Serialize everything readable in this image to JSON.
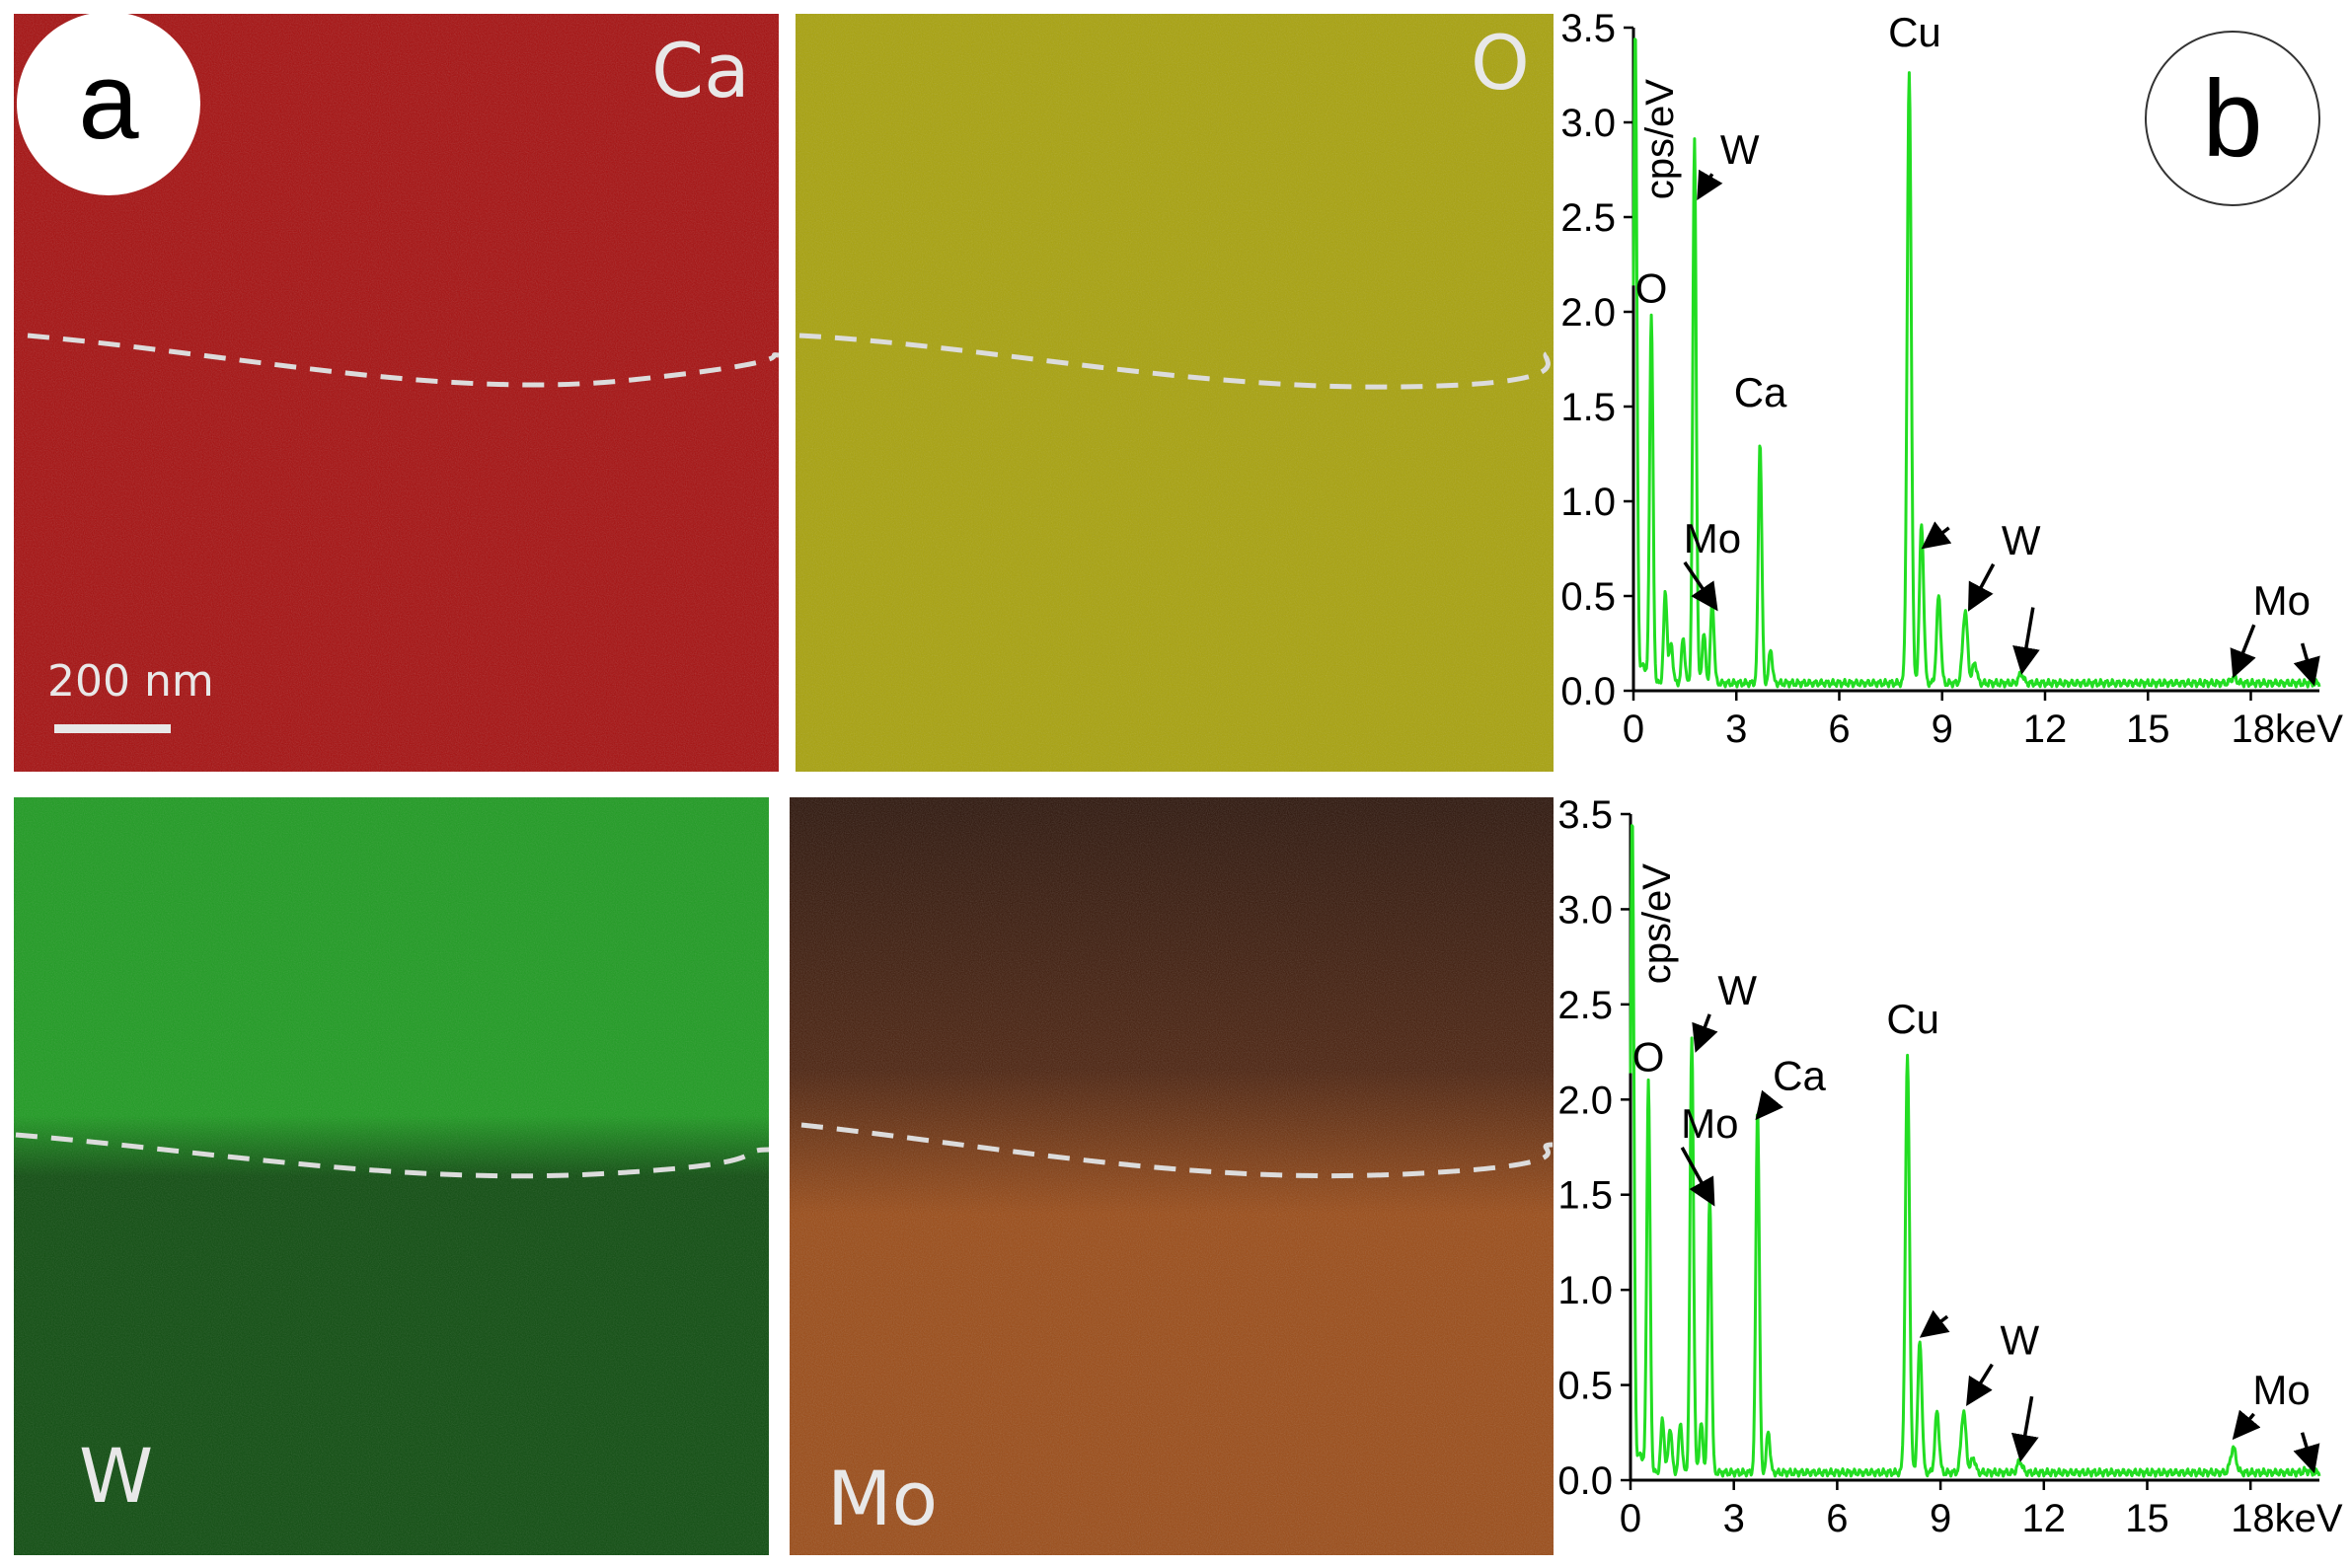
{
  "panel_a": {
    "badge": "a",
    "maps": [
      {
        "element": "Ca",
        "color": "#a50d0d"
      },
      {
        "element": "O",
        "color": "#a8a20c"
      },
      {
        "element": "W",
        "color": "#1f9b22",
        "color_lower": "#0f4d10"
      },
      {
        "element": "Mo",
        "color": "#2a1208",
        "color_lower": "#9a4a15"
      }
    ],
    "scale_bar": "200 nm"
  },
  "panel_b": {
    "badge": "b"
  },
  "chart_data": [
    {
      "type": "line",
      "title": "",
      "xlabel": "keV",
      "ylabel": "cps/eV",
      "xlim": [
        0,
        20
      ],
      "ylim": [
        0,
        3.5
      ],
      "x_ticks": [
        "0",
        "3",
        "6",
        "9",
        "12",
        "15",
        "18keV"
      ],
      "x_tick_values": [
        0,
        3,
        6,
        9,
        12,
        15,
        18
      ],
      "y_ticks": [
        "0.0",
        "0.5",
        "1.0",
        "1.5",
        "2.0",
        "2.5",
        "3.0",
        "3.5"
      ],
      "y_tick_values": [
        0,
        0.5,
        1.0,
        1.5,
        2.0,
        2.5,
        3.0,
        3.5
      ],
      "line_color": "#22dd22",
      "baseline": 0.04,
      "peaks": [
        {
          "x": 0.05,
          "y": 3.5,
          "w": 0.05
        },
        {
          "x": 0.28,
          "y": 0.15,
          "w": 0.06
        },
        {
          "x": 0.52,
          "y": 1.98,
          "w": 0.05
        },
        {
          "x": 0.93,
          "y": 0.52,
          "w": 0.05
        },
        {
          "x": 1.1,
          "y": 0.25,
          "w": 0.05
        },
        {
          "x": 1.45,
          "y": 0.28,
          "w": 0.05
        },
        {
          "x": 1.78,
          "y": 2.92,
          "w": 0.05
        },
        {
          "x": 2.05,
          "y": 0.3,
          "w": 0.05
        },
        {
          "x": 2.3,
          "y": 0.48,
          "w": 0.05
        },
        {
          "x": 3.69,
          "y": 1.32,
          "w": 0.05
        },
        {
          "x": 4.0,
          "y": 0.22,
          "w": 0.05
        },
        {
          "x": 8.04,
          "y": 3.25,
          "w": 0.06
        },
        {
          "x": 8.4,
          "y": 0.88,
          "w": 0.06
        },
        {
          "x": 8.9,
          "y": 0.5,
          "w": 0.06
        },
        {
          "x": 9.67,
          "y": 0.42,
          "w": 0.07
        },
        {
          "x": 9.95,
          "y": 0.15,
          "w": 0.06
        },
        {
          "x": 11.3,
          "y": 0.09,
          "w": 0.07
        },
        {
          "x": 17.5,
          "y": 0.07,
          "w": 0.08
        },
        {
          "x": 19.6,
          "y": 0.04,
          "w": 0.08
        }
      ],
      "annotations": [
        {
          "text": "O",
          "x": 0.52,
          "y": 2.05
        },
        {
          "text": "W",
          "x": 3.1,
          "y": 2.78,
          "arrow_to": [
            1.95,
            2.62
          ]
        },
        {
          "text": "Mo",
          "x": 2.3,
          "y": 0.73,
          "arrow_to": [
            2.35,
            0.45
          ]
        },
        {
          "text": "Ca",
          "x": 3.7,
          "y": 1.5
        },
        {
          "text": "Cu",
          "x": 8.2,
          "y": 3.4
        },
        {
          "text": "",
          "x": 9.2,
          "y": 0.86,
          "arrow_to": [
            8.55,
            0.77
          ]
        },
        {
          "text": "W",
          "x": 11.3,
          "y": 0.72,
          "arrow_to": [
            9.85,
            0.45
          ]
        },
        {
          "text": "",
          "x": 11.65,
          "y": 0.44,
          "arrow_to": [
            11.35,
            0.12
          ]
        },
        {
          "text": "Mo",
          "x": 18.9,
          "y": 0.4,
          "arrow_to": [
            17.55,
            0.1
          ]
        },
        {
          "text": "",
          "x": 19.5,
          "y": 0.25,
          "arrow_to": [
            19.8,
            0.06
          ]
        }
      ]
    },
    {
      "type": "line",
      "title": "",
      "xlabel": "keV",
      "ylabel": "cps/eV",
      "xlim": [
        0,
        20
      ],
      "ylim": [
        0,
        3.5
      ],
      "x_ticks": [
        "0",
        "3",
        "6",
        "9",
        "12",
        "15",
        "18keV"
      ],
      "x_tick_values": [
        0,
        3,
        6,
        9,
        12,
        15,
        18
      ],
      "y_ticks": [
        "0.0",
        "0.5",
        "1.0",
        "1.5",
        "2.0",
        "2.5",
        "3.0",
        "3.5"
      ],
      "y_tick_values": [
        0,
        0.5,
        1.0,
        1.5,
        2.0,
        2.5,
        3.0,
        3.5
      ],
      "line_color": "#22dd22",
      "baseline": 0.04,
      "peaks": [
        {
          "x": 0.05,
          "y": 3.5,
          "w": 0.05
        },
        {
          "x": 0.28,
          "y": 0.15,
          "w": 0.06
        },
        {
          "x": 0.52,
          "y": 2.1,
          "w": 0.05
        },
        {
          "x": 0.93,
          "y": 0.32,
          "w": 0.05
        },
        {
          "x": 1.15,
          "y": 0.28,
          "w": 0.05
        },
        {
          "x": 1.45,
          "y": 0.3,
          "w": 0.05
        },
        {
          "x": 1.78,
          "y": 2.33,
          "w": 0.05
        },
        {
          "x": 2.05,
          "y": 0.3,
          "w": 0.05
        },
        {
          "x": 2.3,
          "y": 1.5,
          "w": 0.05
        },
        {
          "x": 3.69,
          "y": 1.96,
          "w": 0.05
        },
        {
          "x": 4.0,
          "y": 0.26,
          "w": 0.05
        },
        {
          "x": 8.04,
          "y": 2.22,
          "w": 0.06
        },
        {
          "x": 8.4,
          "y": 0.73,
          "w": 0.06
        },
        {
          "x": 8.9,
          "y": 0.36,
          "w": 0.06
        },
        {
          "x": 9.67,
          "y": 0.36,
          "w": 0.07
        },
        {
          "x": 9.95,
          "y": 0.12,
          "w": 0.06
        },
        {
          "x": 11.3,
          "y": 0.1,
          "w": 0.07
        },
        {
          "x": 17.5,
          "y": 0.17,
          "w": 0.08
        },
        {
          "x": 19.6,
          "y": 0.05,
          "w": 0.08
        }
      ],
      "annotations": [
        {
          "text": "O",
          "x": 0.52,
          "y": 2.15
        },
        {
          "text": "W",
          "x": 3.1,
          "y": 2.5,
          "arrow_to": [
            1.95,
            2.28
          ]
        },
        {
          "text": "Mo",
          "x": 2.3,
          "y": 1.8,
          "arrow_to": [
            2.35,
            1.47
          ]
        },
        {
          "text": "Ca",
          "x": 4.9,
          "y": 2.05,
          "arrow_to": [
            3.75,
            1.92
          ]
        },
        {
          "text": "Cu",
          "x": 8.2,
          "y": 2.35
        },
        {
          "text": "",
          "x": 9.2,
          "y": 0.86,
          "arrow_to": [
            8.55,
            0.77
          ]
        },
        {
          "text": "W",
          "x": 11.3,
          "y": 0.66,
          "arrow_to": [
            9.85,
            0.42
          ]
        },
        {
          "text": "",
          "x": 11.65,
          "y": 0.44,
          "arrow_to": [
            11.35,
            0.13
          ]
        },
        {
          "text": "Mo",
          "x": 18.9,
          "y": 0.4,
          "arrow_to": [
            17.6,
            0.24
          ]
        },
        {
          "text": "",
          "x": 19.5,
          "y": 0.25,
          "arrow_to": [
            19.8,
            0.07
          ]
        }
      ]
    }
  ]
}
